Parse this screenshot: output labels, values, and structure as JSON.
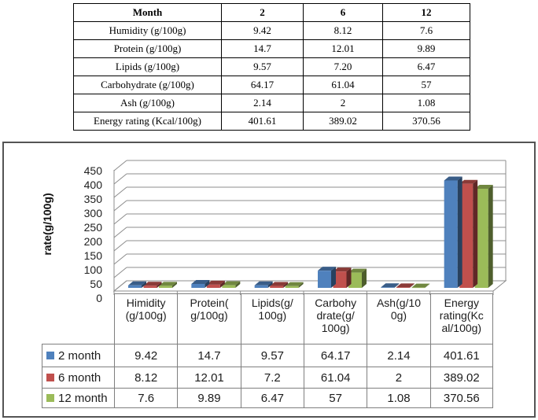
{
  "top_table": {
    "header": [
      "Month",
      "2",
      "6",
      "12"
    ],
    "rows": [
      {
        "label": "Humidity (g/100g)",
        "values": [
          "9.42",
          "8.12",
          "7.6"
        ]
      },
      {
        "label": "Protein (g/100g)",
        "values": [
          "14.7",
          "12.01",
          "9.89"
        ]
      },
      {
        "label": "Lipids (g/100g)",
        "values": [
          "9.57",
          "7.20",
          "6.47"
        ]
      },
      {
        "label": "Carbohydrate (g/100g)",
        "values": [
          "64.17",
          "61.04",
          "57"
        ]
      },
      {
        "label": "Ash (g/100g)",
        "values": [
          "2.14",
          "2",
          "1.08"
        ]
      },
      {
        "label": "Energy rating (Kcal/100g)",
        "values": [
          "401.61",
          "389.02",
          "370.56"
        ]
      }
    ]
  },
  "chart": {
    "ylabel": "rate(g/100g)",
    "yticks": [
      "450",
      "400",
      "350",
      "300",
      "250",
      "200",
      "150",
      "100",
      "50",
      "0"
    ],
    "category_labels": [
      "Himidity\n(g/100g)",
      "Protein(\ng/100g)",
      "Lipids(g/\n100g)",
      "Carbohy\ndrate(g/\n100g)",
      "Ash(g/10\n0g)",
      "Energy\nrating(Kc\nal/100g)"
    ],
    "legend": [
      "2 month",
      "6 month",
      "12 month"
    ],
    "table_rows": [
      [
        "9.42",
        "14.7",
        "9.57",
        "64.17",
        "2.14",
        "401.61"
      ],
      [
        "8.12",
        "12.01",
        "7.2",
        "61.04",
        "2",
        "389.02"
      ],
      [
        "7.6",
        "9.89",
        "6.47",
        "57",
        "1.08",
        "370.56"
      ]
    ]
  },
  "chart_data": {
    "type": "bar",
    "subtype": "3d-clustered-column",
    "title": "",
    "xlabel": "",
    "ylabel": "rate(g/100g)",
    "ylim": [
      0,
      450
    ],
    "ytick_step": 50,
    "grid": true,
    "legend_position": "bottom-data-table",
    "categories": [
      "Himidity (g/100g)",
      "Protein( g/100g)",
      "Lipids(g/ 100g)",
      "Carbohy drate(g/ 100g)",
      "Ash(g/10 0g)",
      "Energy rating(Kc al/100g)"
    ],
    "series": [
      {
        "name": "2 month",
        "color": "#4F81BD",
        "values": [
          9.42,
          14.7,
          9.57,
          64.17,
          2.14,
          401.61
        ]
      },
      {
        "name": "6 month",
        "color": "#C0504D",
        "values": [
          8.12,
          12.01,
          7.2,
          61.04,
          2,
          389.02
        ]
      },
      {
        "name": "12 month",
        "color": "#9BBB59",
        "values": [
          7.6,
          9.89,
          6.47,
          57,
          1.08,
          370.56
        ]
      }
    ],
    "gridline_color": "#8C8C8C",
    "table_border_color": "#7f7f7f"
  }
}
